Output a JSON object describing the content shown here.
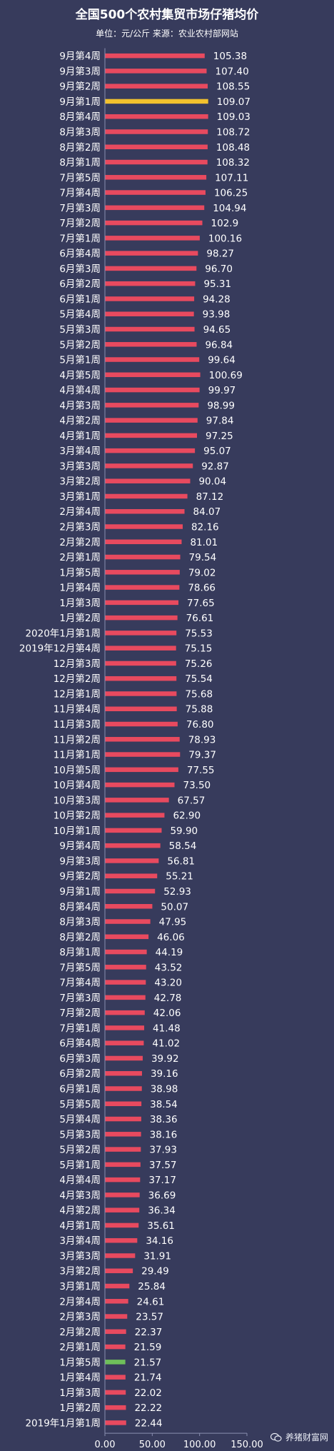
{
  "chart_data": {
    "type": "bar",
    "orientation": "horizontal",
    "title": "全国500个农村集贸市场仔猪均价",
    "subtitle": "单位：元/公斤 来源：农业农村部网站",
    "xlim": [
      0,
      150
    ],
    "xticks": [
      "0.00",
      "50.00",
      "100.00",
      "150.00"
    ],
    "bar_color": "#e84a5f",
    "highlight_colors": {
      "9月第1周": "#f2c12e",
      "1月第5周": "#6fbf5a"
    },
    "categories": [
      "9月第4周",
      "9月第3周",
      "9月第2周",
      "9月第1周",
      "8月第4周",
      "8月第3周",
      "8月第2周",
      "8月第1周",
      "7月第5周",
      "7月第4周",
      "7月第3周",
      "7月第2周",
      "7月第1周",
      "6月第4周",
      "6月第3周",
      "6月第2周",
      "6月第1周",
      "5月第4周",
      "5月第3周",
      "5月第2周",
      "5月第1周",
      "4月第5周",
      "4月第4周",
      "4月第3周",
      "4月第2周",
      "4月第1周",
      "3月第4周",
      "3月第3周",
      "3月第2周",
      "3月第1周",
      "2月第4周",
      "2月第3周",
      "2月第2周",
      "2月第1周",
      "1月第5周",
      "1月第4周",
      "1月第3周",
      "1月第2周",
      "2020年1月第1周",
      "2019年12月第4周",
      "12月第3周",
      "12月第2周",
      "12月第1周",
      "11月第4周",
      "11月第3周",
      "11月第2周",
      "11月第1周",
      "10月第5周",
      "10月第4周",
      "10月第3周",
      "10月第2周",
      "10月第1周",
      "9月第4周",
      "9月第3周",
      "9月第2周",
      "9月第1周",
      "8月第4周",
      "8月第3周",
      "8月第2周",
      "8月第1周",
      "7月第5周",
      "7月第4周",
      "7月第3周",
      "7月第2周",
      "7月第1周",
      "6月第4周",
      "6月第3周",
      "6月第2周",
      "6月第1周",
      "5月第5周",
      "5月第4周",
      "5月第3周",
      "5月第2周",
      "5月第1周",
      "4月第4周",
      "4月第3周",
      "4月第2周",
      "4月第1周",
      "3月第4周",
      "3月第3周",
      "3月第2周",
      "3月第1周",
      "2月第4周",
      "2月第3周",
      "2月第2周",
      "2月第1周",
      "1月第5周",
      "1月第4周",
      "1月第3周",
      "1月第2周",
      "2019年1月第1周"
    ],
    "value_labels": [
      "105.38",
      "107.40",
      "108.55",
      "109.07",
      "109.03",
      "108.72",
      "108.48",
      "108.32",
      "107.11",
      "106.25",
      "104.94",
      "102.9",
      "100.16",
      "98.27",
      "96.70",
      "95.31",
      "94.28",
      "93.98",
      "94.65",
      "96.84",
      "99.64",
      "100.69",
      "99.97",
      "98.99",
      "97.84",
      "97.25",
      "95.07",
      "92.87",
      "90.04",
      "87.12",
      "84.07",
      "82.16",
      "81.01",
      "79.54",
      "79.02",
      "78.66",
      "77.65",
      "76.61",
      "75.53",
      "75.15",
      "75.26",
      "75.54",
      "75.68",
      "75.88",
      "76.80",
      "78.93",
      "79.37",
      "77.55",
      "73.50",
      "67.57",
      "62.90",
      "59.90",
      "58.54",
      "56.81",
      "55.21",
      "52.93",
      "50.07",
      "47.95",
      "46.06",
      "44.19",
      "43.52",
      "43.20",
      "42.78",
      "42.06",
      "41.48",
      "41.02",
      "39.92",
      "39.16",
      "38.98",
      "38.54",
      "38.36",
      "38.16",
      "37.93",
      "37.57",
      "37.17",
      "36.69",
      "36.34",
      "35.61",
      "34.16",
      "31.91",
      "29.49",
      "25.84",
      "24.61",
      "23.57",
      "22.37",
      "21.59",
      "21.57",
      "21.74",
      "22.02",
      "22.22",
      "22.44"
    ],
    "values": [
      105.38,
      107.4,
      108.55,
      109.07,
      109.03,
      108.72,
      108.48,
      108.32,
      107.11,
      106.25,
      104.94,
      102.9,
      100.16,
      98.27,
      96.7,
      95.31,
      94.28,
      93.98,
      94.65,
      96.84,
      99.64,
      100.69,
      99.97,
      98.99,
      97.84,
      97.25,
      95.07,
      92.87,
      90.04,
      87.12,
      84.07,
      82.16,
      81.01,
      79.54,
      79.02,
      78.66,
      77.65,
      76.61,
      75.53,
      75.15,
      75.26,
      75.54,
      75.68,
      75.88,
      76.8,
      78.93,
      79.37,
      77.55,
      73.5,
      67.57,
      62.9,
      59.9,
      58.54,
      56.81,
      55.21,
      52.93,
      50.07,
      47.95,
      46.06,
      44.19,
      43.52,
      43.2,
      42.78,
      42.06,
      41.48,
      41.02,
      39.92,
      39.16,
      38.98,
      38.54,
      38.36,
      38.16,
      37.93,
      37.57,
      37.17,
      36.69,
      36.34,
      35.61,
      34.16,
      31.91,
      29.49,
      25.84,
      24.61,
      23.57,
      22.37,
      21.59,
      21.57,
      21.74,
      22.02,
      22.22,
      22.44
    ]
  },
  "watermark": {
    "text": "养猪财富网",
    "icon": "wechat-icon"
  }
}
